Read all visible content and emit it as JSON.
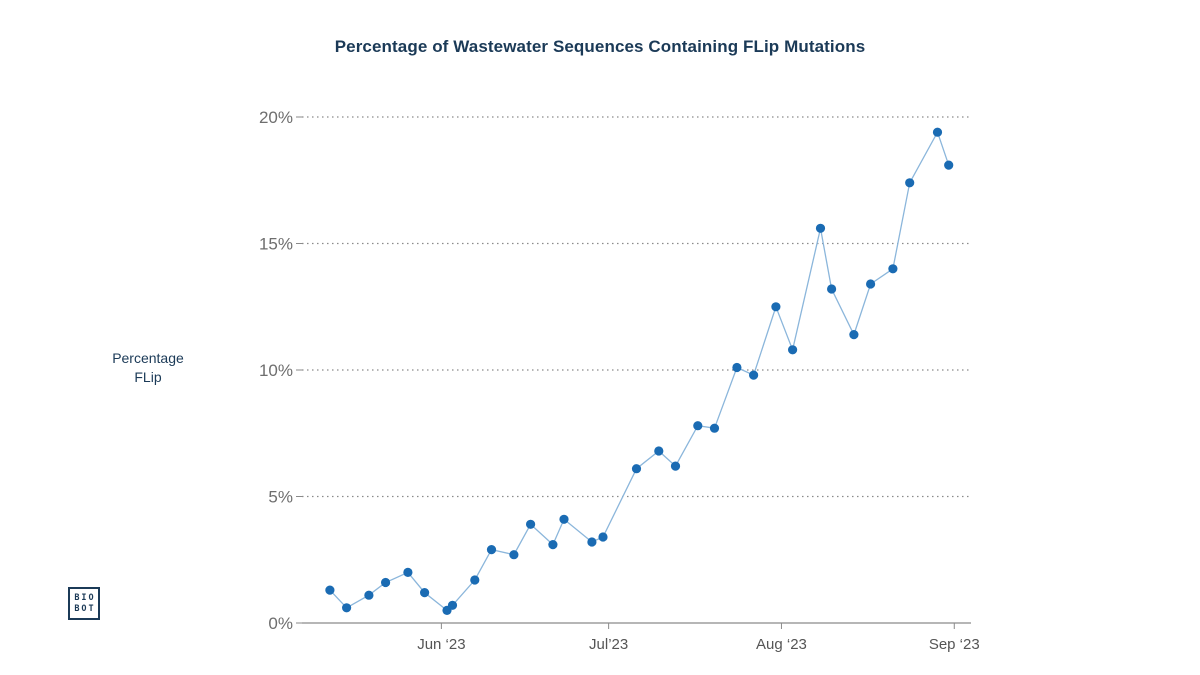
{
  "chart_data": {
    "type": "line",
    "title": "Percentage of Wastewater Sequences Containing FLip Mutations",
    "ylabel": [
      "Percentage",
      "FLip"
    ],
    "xlabel": "",
    "x_axis": {
      "type": "date",
      "range": [
        "2023-05-07",
        "2023-09-04"
      ],
      "ticks": [
        {
          "date": "2023-06-01",
          "label": "Jun ‘23"
        },
        {
          "date": "2023-07-01",
          "label": "Jul’23"
        },
        {
          "date": "2023-08-01",
          "label": "Aug ‘23"
        },
        {
          "date": "2023-09-01",
          "label": "Sep ‘23"
        }
      ]
    },
    "ylim": [
      0,
      20
    ],
    "y_ticks": [
      {
        "value": 0,
        "label": "0%"
      },
      {
        "value": 5,
        "label": "5%"
      },
      {
        "value": 10,
        "label": "10%"
      },
      {
        "value": 15,
        "label": "15%"
      },
      {
        "value": 20,
        "label": "20%"
      }
    ],
    "grid": "horizontal dotted",
    "series": [
      {
        "color": "#1a6bb3",
        "line_color": "#8bb6db",
        "points": [
          {
            "x": "2023-05-12",
            "y": 1.3
          },
          {
            "x": "2023-05-15",
            "y": 0.6
          },
          {
            "x": "2023-05-19",
            "y": 1.1
          },
          {
            "x": "2023-05-22",
            "y": 1.6
          },
          {
            "x": "2023-05-26",
            "y": 2.0
          },
          {
            "x": "2023-05-29",
            "y": 1.2
          },
          {
            "x": "2023-06-02",
            "y": 0.5
          },
          {
            "x": "2023-06-03",
            "y": 0.7
          },
          {
            "x": "2023-06-07",
            "y": 1.7
          },
          {
            "x": "2023-06-10",
            "y": 2.9
          },
          {
            "x": "2023-06-14",
            "y": 2.7
          },
          {
            "x": "2023-06-17",
            "y": 3.9
          },
          {
            "x": "2023-06-21",
            "y": 3.1
          },
          {
            "x": "2023-06-23",
            "y": 4.1
          },
          {
            "x": "2023-06-28",
            "y": 3.2
          },
          {
            "x": "2023-06-30",
            "y": 3.4
          },
          {
            "x": "2023-07-06",
            "y": 6.1
          },
          {
            "x": "2023-07-10",
            "y": 6.8
          },
          {
            "x": "2023-07-13",
            "y": 6.2
          },
          {
            "x": "2023-07-17",
            "y": 7.8
          },
          {
            "x": "2023-07-20",
            "y": 7.7
          },
          {
            "x": "2023-07-24",
            "y": 10.1
          },
          {
            "x": "2023-07-27",
            "y": 9.8
          },
          {
            "x": "2023-07-31",
            "y": 12.5
          },
          {
            "x": "2023-08-03",
            "y": 10.8
          },
          {
            "x": "2023-08-08",
            "y": 15.6
          },
          {
            "x": "2023-08-10",
            "y": 13.2
          },
          {
            "x": "2023-08-14",
            "y": 11.4
          },
          {
            "x": "2023-08-17",
            "y": 13.4
          },
          {
            "x": "2023-08-21",
            "y": 14.0
          },
          {
            "x": "2023-08-24",
            "y": 17.4
          },
          {
            "x": "2023-08-29",
            "y": 19.4
          },
          {
            "x": "2023-08-31",
            "y": 18.1
          }
        ]
      }
    ]
  },
  "logo": {
    "line1": "BIO",
    "line2": "BOT",
    "color": "#1b3a57"
  }
}
